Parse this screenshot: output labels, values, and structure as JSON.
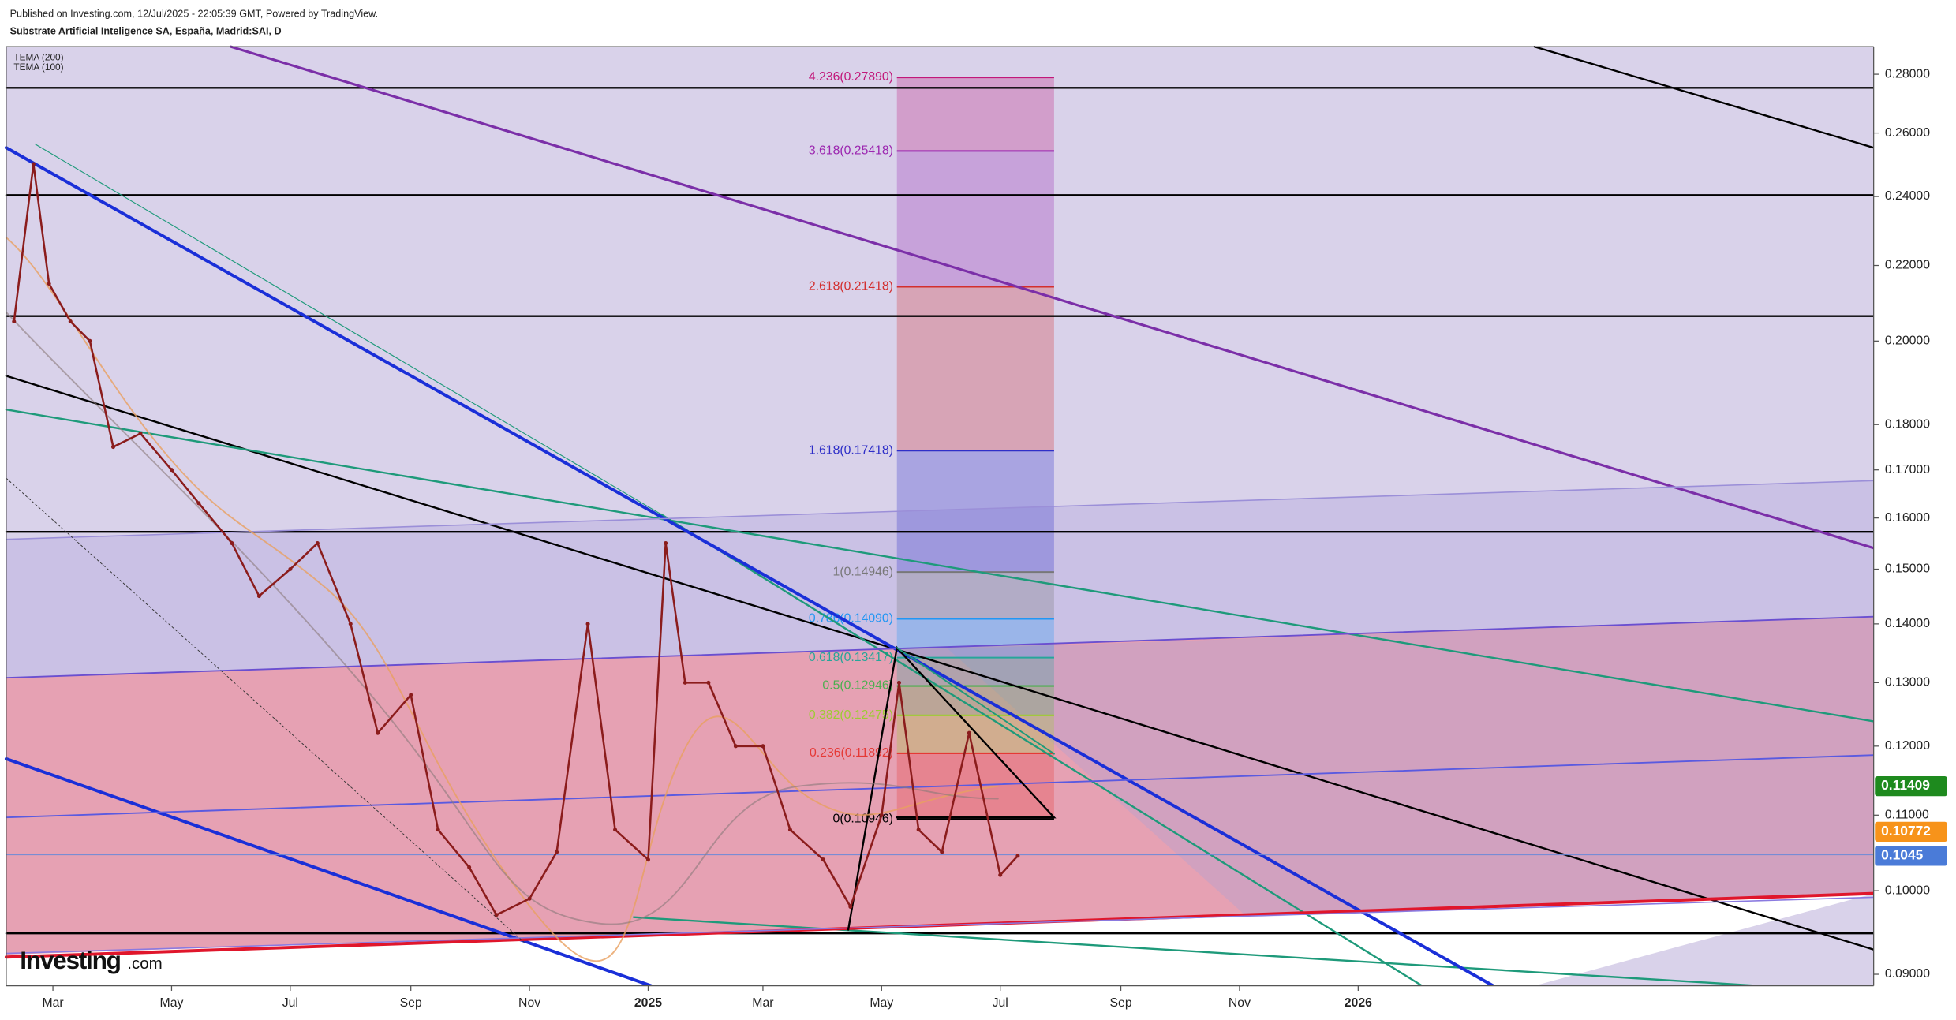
{
  "header": {
    "published": "Published on Investing.com, 12/Jul/2025 - 22:05:39 GMT, Powered by TradingView.",
    "instrument": "Substrate Artificial Inteligence SA, España, Madrid:SAI, D",
    "logo": "Investing",
    "logo_suffix": ".com"
  },
  "chart_data": {
    "type": "line",
    "log_scale": true,
    "color": "#8b1c1c",
    "legend": [
      "TEMA (200)",
      "TEMA (100)"
    ],
    "x": [
      "2024-02-10",
      "2024-02-20",
      "2024-02-28",
      "2024-03-10",
      "2024-03-20",
      "2024-04-01",
      "2024-04-15",
      "2024-05-01",
      "2024-05-15",
      "2024-06-01",
      "2024-06-15",
      "2024-07-01",
      "2024-07-15",
      "2024-08-01",
      "2024-08-15",
      "2024-09-01",
      "2024-09-15",
      "2024-10-01",
      "2024-10-15",
      "2024-11-01",
      "2024-11-15",
      "2024-12-01",
      "2024-12-15",
      "2025-01-01",
      "2025-01-10",
      "2025-01-20",
      "2025-02-01",
      "2025-02-15",
      "2025-03-01",
      "2025-03-15",
      "2025-04-01",
      "2025-04-15",
      "2025-05-01",
      "2025-05-10",
      "2025-05-20",
      "2025-06-01",
      "2025-06-15",
      "2025-07-01",
      "2025-07-10"
    ],
    "values": [
      0.205,
      0.25,
      0.215,
      0.205,
      0.2,
      0.175,
      0.178,
      0.17,
      0.163,
      0.155,
      0.145,
      0.15,
      0.155,
      0.14,
      0.122,
      0.128,
      0.108,
      0.103,
      0.097,
      0.099,
      0.105,
      0.14,
      0.108,
      0.104,
      0.155,
      0.13,
      0.13,
      0.12,
      0.12,
      0.108,
      0.104,
      0.098,
      0.11,
      0.13,
      0.108,
      0.105,
      0.122,
      0.102,
      0.1045
    ],
    "xlim": [
      "2024-02-06",
      "2026-09-23"
    ],
    "xticks": [
      {
        "value": "2024-03-01",
        "label": "Mar"
      },
      {
        "value": "2024-05-01",
        "label": "May"
      },
      {
        "value": "2024-07-01",
        "label": "Jul"
      },
      {
        "value": "2024-09-01",
        "label": "Sep"
      },
      {
        "value": "2024-11-01",
        "label": "Nov"
      },
      {
        "value": "2025-01-01",
        "label": "2025"
      },
      {
        "value": "2025-03-01",
        "label": "Mar"
      },
      {
        "value": "2025-05-01",
        "label": "May"
      },
      {
        "value": "2025-07-01",
        "label": "Jul"
      },
      {
        "value": "2025-09-01",
        "label": "Sep"
      },
      {
        "value": "2025-11-01",
        "label": "Nov"
      },
      {
        "value": "2026-01-01",
        "label": "2026"
      }
    ],
    "ylim": [
      0.0887,
      0.2899
    ],
    "yticks": [
      {
        "value": 0.28,
        "label": "0.28000"
      },
      {
        "value": 0.26,
        "label": "0.26000"
      },
      {
        "value": 0.24,
        "label": "0.24000"
      },
      {
        "value": 0.22,
        "label": "0.22000"
      },
      {
        "value": 0.2,
        "label": "0.20000"
      },
      {
        "value": 0.18,
        "label": "0.18000"
      },
      {
        "value": 0.17,
        "label": "0.17000"
      },
      {
        "value": 0.16,
        "label": "0.16000"
      },
      {
        "value": 0.15,
        "label": "0.15000"
      },
      {
        "value": 0.14,
        "label": "0.14000"
      },
      {
        "value": 0.13,
        "label": "0.13000"
      },
      {
        "value": 0.12,
        "label": "0.12000"
      },
      {
        "value": 0.11,
        "label": "0.11000"
      },
      {
        "value": 0.1,
        "label": "0.10000"
      },
      {
        "value": 0.09,
        "label": "0.09000"
      }
    ],
    "fib_levels": [
      {
        "label": "4.236(0.27890)",
        "value": 0.2789,
        "color": "#c2187a"
      },
      {
        "label": "3.618(0.25418)",
        "value": 0.25418,
        "color": "#9c27b0"
      },
      {
        "label": "2.618(0.21418)",
        "value": 0.21418,
        "color": "#d32f2f"
      },
      {
        "label": "1.618(0.17418)",
        "value": 0.17418,
        "color": "#2f2fc8"
      },
      {
        "label": "1(0.14946)",
        "value": 0.14946,
        "color": "#787878"
      },
      {
        "label": "0.786(0.14090)",
        "value": 0.1409,
        "color": "#2196f3"
      },
      {
        "label": "0.618(0.13417)",
        "value": 0.13417,
        "color": "#26a69a"
      },
      {
        "label": "0.5(0.12946)",
        "value": 0.12946,
        "color": "#4caf50"
      },
      {
        "label": "0.382(0.12475)",
        "value": 0.12475,
        "color": "#9ccc32"
      },
      {
        "label": "0.236(0.11892)",
        "value": 0.11892,
        "color": "#e53935"
      },
      {
        "label": "0(0.10946)",
        "value": 0.10946,
        "color": "#000000"
      }
    ],
    "price_tags": [
      {
        "value": 0.11409,
        "color": "#1e8a1e"
      },
      {
        "value": 0.10772,
        "color": "#f7931a"
      },
      {
        "value": 0.1045,
        "color": "#4a7bd8"
      }
    ]
  }
}
